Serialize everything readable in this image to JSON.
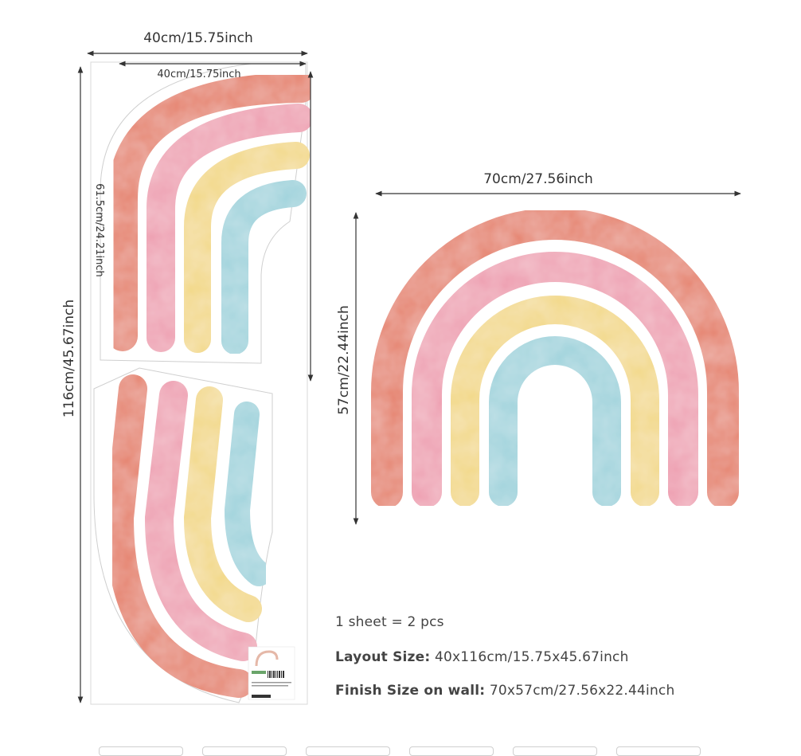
{
  "dimensions": {
    "sheet_width_outer": "40cm/15.75inch",
    "sheet_width_inner": "40cm/15.75inch",
    "sheet_height": "116cm/45.67inch",
    "piece_height": "61.5cm/24.21inch",
    "rainbow_width": "70cm/27.56inch",
    "rainbow_height": "57cm/22.44inch"
  },
  "info": {
    "line1": "1 sheet = 2 pcs",
    "layout_label": "Layout Size:",
    "layout_value": " 40x116cm/15.75x45.67inch",
    "finish_label": "Finish Size on wall:",
    "finish_value": " 70x57cm/27.56x22.44inch"
  },
  "colors": {
    "coral": "#e5806a",
    "pink": "#ee9fb1",
    "yellow": "#f2d886",
    "blue": "#9fd3dc",
    "arrow": "#333333"
  },
  "thumbnail_count": 6
}
